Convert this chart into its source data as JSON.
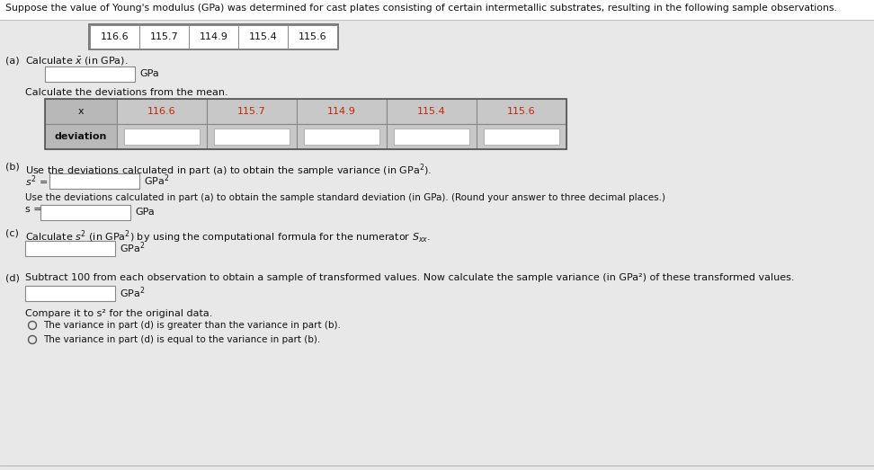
{
  "title_text": "Suppose the value of Young's modulus (GPa) was determined for cast plates consisting of certain intermetallic substrates, resulting in the following sample observations.",
  "observations": [
    "116.6",
    "115.7",
    "114.9",
    "115.4",
    "115.6"
  ],
  "table_header_col0": "x",
  "table_header_cols": [
    "116.6",
    "115.7",
    "114.9",
    "115.4",
    "115.6"
  ],
  "table_row0": "deviation",
  "part_b_std_label1": "Use the deviations calculated in part (a) to obtain the sample standard deviation (in GPa). (Round your answer to three decimal places.)",
  "part_d_label": "Subtract 100 from each observation to obtain a sample of transformed values. Now calculate the sample variance (in GPa²) of these transformed values.",
  "compare_label": "Compare it to s² for the original data.",
  "option1": "The variance in part (d) is greater than the variance in part (b).",
  "option2": "The variance in part (d) is equal to the variance in part (b).",
  "bg_color": "#e8e8e8",
  "white": "#ffffff",
  "cell_bg": "#d4d4d4",
  "header_cell_bg": "#b8b8b8",
  "text_color": "#111111",
  "red_text": "#cc2200",
  "border_color": "#777777",
  "font_size_title": 7.8,
  "font_size_body": 8.0,
  "font_size_small": 7.5
}
